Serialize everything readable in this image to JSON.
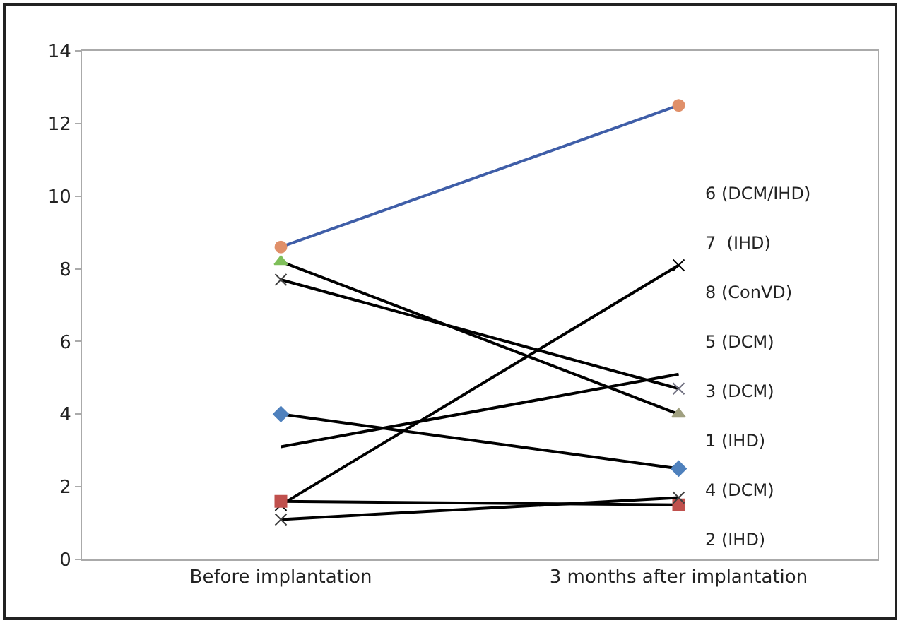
{
  "chart_data": {
    "type": "line",
    "categories": [
      "Before implantation",
      "3 months after implantation"
    ],
    "series": [
      {
        "color": "#3f5ea8",
        "colors": [
          "#e0906a",
          "#e0906a"
        ],
        "marker": "circle",
        "values": [
          8.6,
          12.5
        ]
      },
      {
        "color": "#000000",
        "colors": [
          "#7fbf5a",
          "#a0a080"
        ],
        "marker": "triangle",
        "values": [
          8.2,
          4.0
        ]
      },
      {
        "color": "#000000",
        "colors": [
          "#404040",
          "#707080"
        ],
        "marker": "cross",
        "values": [
          7.7,
          4.7
        ]
      },
      {
        "color": "#000000",
        "colors": [
          "#4f81bd",
          "#4f81bd"
        ],
        "marker": "diamond",
        "values": [
          4.0,
          2.5
        ]
      },
      {
        "color": "#000000",
        "marker": "none",
        "values": [
          3.1,
          5.1
        ]
      },
      {
        "color": "#000000",
        "colors": [
          "#000000",
          "#000000"
        ],
        "marker": "cross",
        "values": [
          1.5,
          8.1
        ]
      },
      {
        "color": "#000000",
        "colors": [
          "#c0504d",
          "#c0504d"
        ],
        "marker": "square",
        "values": [
          1.6,
          1.5
        ]
      },
      {
        "color": "#000000",
        "colors": [
          "#404040",
          "#404040"
        ],
        "marker": "cross",
        "values": [
          1.1,
          1.7
        ]
      }
    ],
    "ylim": [
      0,
      14
    ],
    "yticks": [
      0,
      2,
      4,
      6,
      8,
      10,
      12,
      14
    ],
    "grid": false,
    "annotations": [
      "6 (DCM/IHD)",
      "7  (IHD)",
      "8 (ConVD)",
      "5 (DCM)",
      "3 (DCM)",
      "1 (IHD)",
      "4 (DCM)",
      "2 (IHD)"
    ]
  }
}
